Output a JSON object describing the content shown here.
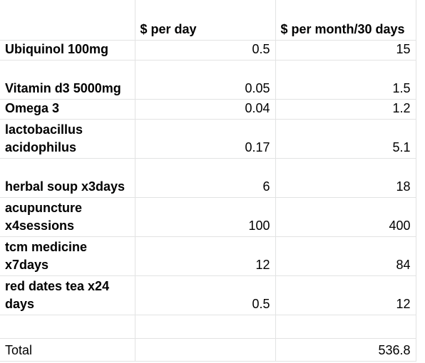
{
  "header": {
    "col_per_day": "$ per day",
    "col_per_month": "$ per month/30 days"
  },
  "rows": [
    {
      "item": "Ubiquinol 100mg",
      "per_day": "0.5",
      "per_month": "15"
    },
    {
      "item": "Vitamin d3 5000mg",
      "per_day": "0.05",
      "per_month": "1.5"
    },
    {
      "item": "Omega 3",
      "per_day": "0.04",
      "per_month": "1.2"
    },
    {
      "item": "lactobacillus acidophilus",
      "per_day": "0.17",
      "per_month": "5.1"
    },
    {
      "item": "herbal soup x3days",
      "per_day": "6",
      "per_month": "18"
    },
    {
      "item": "acupuncture x4sessions",
      "per_day": "100",
      "per_month": "400"
    },
    {
      "item": "tcm medicine x7days",
      "per_day": "12",
      "per_month": "84"
    },
    {
      "item": "red dates tea x24 days",
      "per_day": "0.5",
      "per_month": "12"
    }
  ],
  "total": {
    "label": "Total",
    "per_month": "536.8"
  }
}
